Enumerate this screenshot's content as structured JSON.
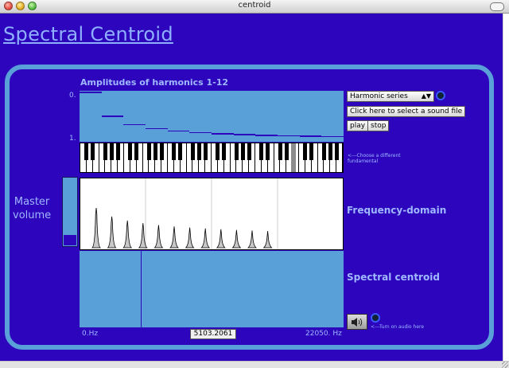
{
  "window": {
    "title": "centroid"
  },
  "app": {
    "title": "Spectral Centroid"
  },
  "amplitudes": {
    "title": "Amplitudes of harmonics 1-12",
    "tick_top": "0.",
    "tick_bottom": "1.",
    "harmonic_levels": [
      1.0,
      0.5,
      0.333,
      0.25,
      0.2,
      0.167,
      0.143,
      0.125,
      0.111,
      0.1,
      0.091,
      0.083
    ]
  },
  "keyboard": {
    "note": "<---Choose a different fundamental"
  },
  "master_volume": {
    "label_line1": "Master",
    "label_line2": "volume",
    "level": 0.15
  },
  "frequency_domain": {
    "label": "Frequency-domain"
  },
  "spectral_centroid": {
    "label": "Spectral centroid",
    "position": 0.233
  },
  "axis": {
    "min_label": "0.Hz",
    "max_label": "22050. Hz"
  },
  "readout": {
    "value": "5103.2061"
  },
  "controls": {
    "preset_select": "Harmonic series",
    "select_file": "Click here to select a sound file",
    "play": "play",
    "stop": "stop",
    "audio_note": "<---Turn on audio here"
  },
  "colors": {
    "background": "#2c05bd",
    "panel": "#5aa0d8",
    "text": "#9fb8ff"
  }
}
